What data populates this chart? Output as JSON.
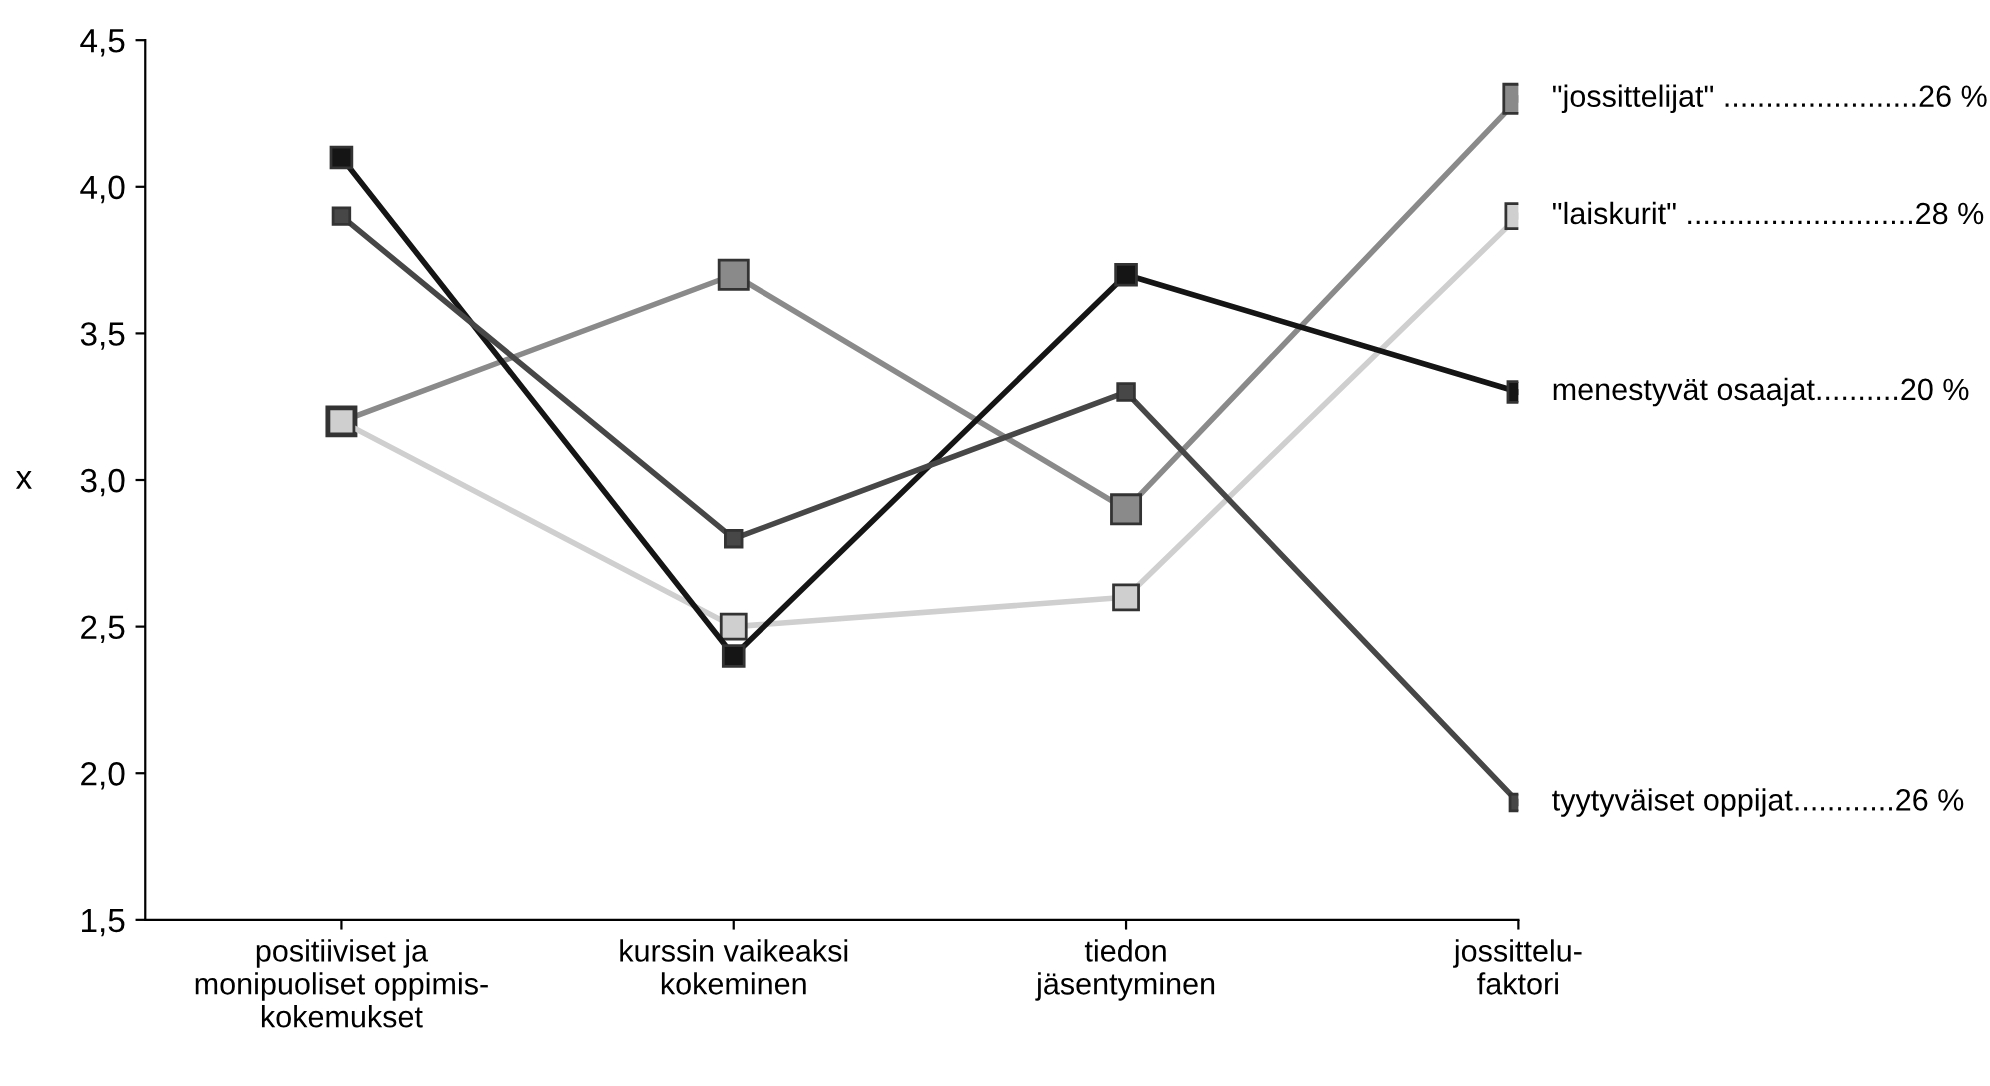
{
  "chart_data": {
    "type": "line",
    "ylabel": "x",
    "categories": [
      "positiiviset ja\nmonipuoliset oppimis-\nkokemukset",
      "kurssin vaikeaksi\nkokeminen",
      "tiedon\njäsentyminen",
      "jossittelu-\nfaktori"
    ],
    "series": [
      {
        "name": "\"jossittelijat\" .......................26 %",
        "color": "#8a8a8a",
        "values": [
          3.2,
          3.7,
          2.9,
          4.3
        ]
      },
      {
        "name": "\"laiskurit\" ...........................28 %",
        "color": "#cfcfcf",
        "values": [
          3.2,
          2.5,
          2.6,
          3.9
        ]
      },
      {
        "name": "menestyvät osaajat..........20 %",
        "color": "#151515",
        "values": [
          4.1,
          2.4,
          3.7,
          3.3
        ]
      },
      {
        "name": "tyytyväiset oppijat............26 %",
        "color": "#474747",
        "values": [
          3.9,
          2.8,
          3.3,
          1.9
        ]
      }
    ],
    "ylim": [
      1.5,
      4.5
    ],
    "yticks": [
      {
        "value": 1.5,
        "label": "1,5"
      },
      {
        "value": 2.0,
        "label": "2,0"
      },
      {
        "value": 2.5,
        "label": "2,5"
      },
      {
        "value": 3.0,
        "label": "3,0"
      },
      {
        "value": 3.5,
        "label": "3,5"
      },
      {
        "value": 4.0,
        "label": "4,0"
      },
      {
        "value": 4.5,
        "label": "4,5"
      }
    ],
    "grid": false,
    "marker": "square",
    "line_style": "solid",
    "legend": "right"
  }
}
